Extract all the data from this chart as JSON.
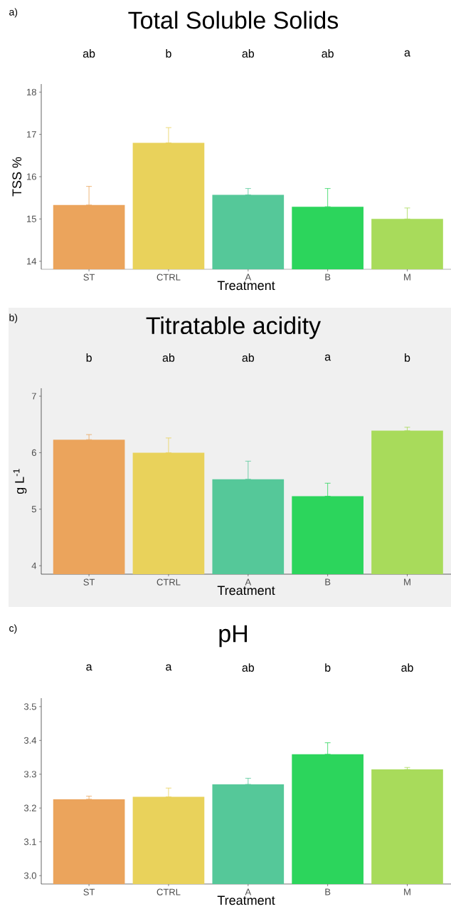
{
  "chart_data": [
    {
      "type": "bar",
      "title": "Total Soluble Solids",
      "xlabel": "Treatment",
      "ylabel": "TSS %",
      "categories": [
        "ST",
        "CTRL",
        "A",
        "B",
        "M"
      ],
      "values": [
        15.33,
        16.8,
        15.57,
        15.29,
        15.0
      ],
      "colors": [
        "#eba45c",
        "#e9d25b",
        "#55c899",
        "#2cd55c",
        "#a8db5b"
      ],
      "errors": [
        [
          15.33,
          15.77
        ],
        [
          16.8,
          17.16
        ],
        [
          15.57,
          15.72
        ],
        [
          15.29,
          15.72
        ],
        [
          15.0,
          15.26
        ]
      ],
      "ylim": [
        13.81,
        18.19
      ],
      "yticks": [
        14,
        15,
        16,
        17,
        18
      ],
      "annotations": [
        "a)",
        "ab",
        "b",
        "ab",
        "ab",
        "a"
      ]
    },
    {
      "type": "bar",
      "title": "Titratable acidity",
      "xlabel": "Treatment",
      "ylabel": "g L$^{-1}$",
      "categories": [
        "ST",
        "CTRL",
        "A",
        "B",
        "M"
      ],
      "values": [
        6.23,
        6.0,
        5.53,
        5.23,
        6.39
      ],
      "colors": [
        "#eba45c",
        "#e9d25b",
        "#55c899",
        "#2cd55c",
        "#a8db5b"
      ],
      "errors": [
        [
          6.23,
          6.32
        ],
        [
          6.0,
          6.26
        ],
        [
          5.53,
          5.85
        ],
        [
          5.23,
          5.46
        ],
        [
          6.39,
          6.45
        ]
      ],
      "ylim": [
        3.85,
        7.14
      ],
      "yticks": [
        4,
        5,
        6,
        7
      ],
      "annotations": [
        "b)",
        "b",
        "ab",
        "ab",
        "a",
        "b"
      ]
    },
    {
      "type": "bar",
      "title": "pH",
      "xlabel": "Treatment",
      "categories": [
        "ST",
        "CTRL",
        "A",
        "B",
        "M"
      ],
      "values": [
        3.226,
        3.233,
        3.27,
        3.359,
        3.314
      ],
      "colors": [
        "#eba45c",
        "#e9d25b",
        "#55c899",
        "#2cd55c",
        "#a8db5b"
      ],
      "errors": [
        [
          3.226,
          3.235
        ],
        [
          3.233,
          3.259
        ],
        [
          3.27,
          3.288
        ],
        [
          3.359,
          3.393
        ],
        [
          3.314,
          3.32
        ]
      ],
      "ylim": [
        2.975,
        3.525
      ],
      "yticks": [
        {
          "value": 3.0,
          "label": "3.0"
        },
        {
          "value": 3.1,
          "label": "3.1"
        },
        {
          "value": 3.2,
          "label": "3.2"
        },
        {
          "value": 3.3,
          "label": "3.3"
        },
        {
          "value": 3.4,
          "label": "3.4"
        },
        {
          "value": 3.5,
          "label": "3.5"
        }
      ],
      "annotations": [
        "c)",
        "a",
        "a",
        "ab",
        "b",
        "ab"
      ]
    }
  ]
}
